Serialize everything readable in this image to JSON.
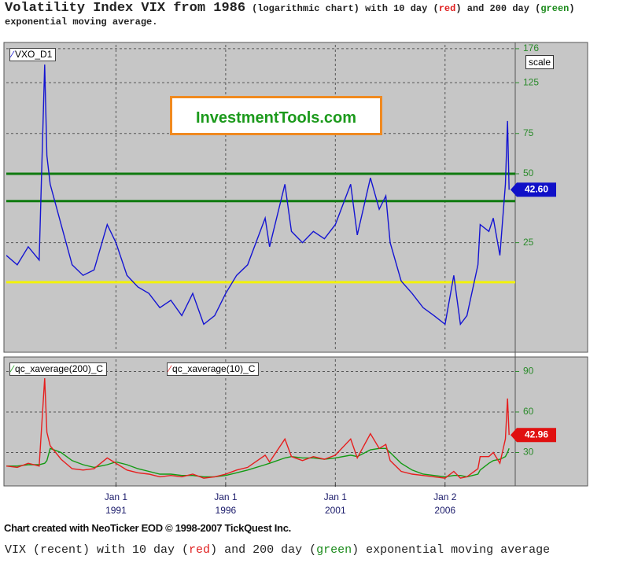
{
  "header": {
    "title": "Volatility Index VIX from 1986",
    "subtitle_parts": [
      "(logarithmic chart) with 10 day (",
      "red",
      ") and 200 day (",
      "green",
      ") exponential moving average."
    ]
  },
  "watermark": "InvestmentTools.com",
  "scale_button": "scale",
  "chart_data": [
    {
      "type": "line",
      "log_scale": true,
      "grid": true,
      "x": [
        1986.0,
        1986.5,
        1987.0,
        1987.5,
        1987.75,
        1987.85,
        1988.0,
        1988.5,
        1989.0,
        1989.5,
        1990.0,
        1990.6,
        1991.0,
        1991.5,
        1992.0,
        1992.5,
        1993.0,
        1993.5,
        1994.0,
        1994.5,
        1995.0,
        1995.5,
        1996.0,
        1996.5,
        1997.0,
        1997.8,
        1998.0,
        1998.7,
        1999.0,
        1999.5,
        2000.0,
        2000.5,
        2001.0,
        2001.7,
        2002.0,
        2002.6,
        2003.0,
        2003.3,
        2003.5,
        2004.0,
        2004.5,
        2005.0,
        2005.5,
        2006.0,
        2006.4,
        2006.7,
        2007.0,
        2007.5,
        2007.6,
        2008.0,
        2008.2,
        2008.5,
        2008.75,
        2008.85,
        2008.92
      ],
      "series": [
        {
          "name": "VXO_D1",
          "color": "#1414d2",
          "values": [
            22,
            20,
            24,
            21,
            150,
            60,
            45,
            30,
            20,
            18,
            19,
            30,
            25,
            18,
            16,
            15,
            13,
            14,
            12,
            15,
            11,
            12,
            15,
            18,
            20,
            32,
            24,
            45,
            28,
            25,
            28,
            26,
            30,
            45,
            27,
            48,
            35,
            40,
            25,
            17,
            15,
            13,
            12,
            11,
            18,
            11,
            12,
            20,
            30,
            28,
            32,
            22,
            45,
            85,
            42.6
          ]
        }
      ],
      "xlim": [
        1986.0,
        2009.2
      ],
      "xticks": [
        1991,
        1996,
        2001,
        2006
      ],
      "ylim": [
        8.5,
        183
      ],
      "yticks": [
        25,
        50,
        75,
        125,
        176
      ],
      "reference_lines": [
        {
          "value": 50,
          "color": "#0f7a0f"
        },
        {
          "value": 38,
          "color": "#0f7a0f"
        },
        {
          "value": 16.8,
          "color": "#f2f20a"
        }
      ],
      "marker": {
        "value": 42.6,
        "label": "42.60",
        "color": "#1010c8"
      }
    },
    {
      "type": "line",
      "log_scale": false,
      "grid": true,
      "x": [
        1986.0,
        1986.5,
        1987.0,
        1987.5,
        1987.75,
        1987.85,
        1988.0,
        1988.5,
        1989.0,
        1989.5,
        1990.0,
        1990.6,
        1991.0,
        1991.5,
        1992.0,
        1992.5,
        1993.0,
        1993.5,
        1994.0,
        1994.5,
        1995.0,
        1995.5,
        1996.0,
        1996.5,
        1997.0,
        1997.8,
        1998.0,
        1998.7,
        1999.0,
        1999.5,
        2000.0,
        2000.5,
        2001.0,
        2001.7,
        2002.0,
        2002.6,
        2003.0,
        2003.3,
        2003.5,
        2004.0,
        2004.5,
        2005.0,
        2005.5,
        2006.0,
        2006.4,
        2006.7,
        2007.0,
        2007.5,
        2007.6,
        2008.0,
        2008.2,
        2008.5,
        2008.75,
        2008.85,
        2008.92
      ],
      "series": [
        {
          "name": "qc_xaverage(200)_C",
          "color": "#129a12",
          "values": [
            20,
            20,
            21,
            21,
            22,
            24,
            33,
            30,
            24,
            21,
            19,
            21,
            23,
            21,
            18,
            16,
            14,
            14,
            13,
            13,
            12,
            12,
            13,
            15,
            17,
            21,
            22,
            26,
            27,
            26,
            26,
            25,
            26,
            28,
            27,
            32,
            33,
            33,
            30,
            22,
            17,
            14,
            13,
            12,
            13,
            13,
            12,
            14,
            17,
            22,
            24,
            25,
            27,
            30,
            33
          ]
        },
        {
          "name": "qc_xaverage(10)_C",
          "color": "#e61e1e",
          "values": [
            20,
            19,
            22,
            20,
            85,
            45,
            35,
            25,
            18,
            17,
            18,
            26,
            22,
            17,
            15,
            14,
            12,
            13,
            12,
            14,
            11,
            12,
            14,
            17,
            19,
            28,
            23,
            40,
            27,
            24,
            27,
            25,
            28,
            40,
            26,
            44,
            33,
            36,
            24,
            16,
            14,
            13,
            12,
            11,
            16,
            11,
            12,
            18,
            27,
            27,
            30,
            22,
            40,
            70,
            42.96
          ]
        }
      ],
      "xlim": [
        1986.0,
        2009.2
      ],
      "xticks": [
        {
          "value": 1991,
          "label": "Jan 1\n1991"
        },
        {
          "value": 1996,
          "label": "Jan 1\n1996"
        },
        {
          "value": 2001,
          "label": "Jan 1\n2001"
        },
        {
          "value": 2006,
          "label": "Jan 2\n2006"
        }
      ],
      "ylim": [
        7,
        99
      ],
      "yticks": [
        30,
        60,
        90
      ],
      "marker": {
        "value": 42.96,
        "label": "42.96",
        "color": "#e01010"
      }
    }
  ],
  "footer": "Chart created with NeoTicker EOD © 1998-2007 TickQuest Inc.",
  "caption_parts": [
    "VIX (recent) with 10 day (",
    "red",
    ") and 200 day (",
    "green",
    ") exponential moving average"
  ]
}
